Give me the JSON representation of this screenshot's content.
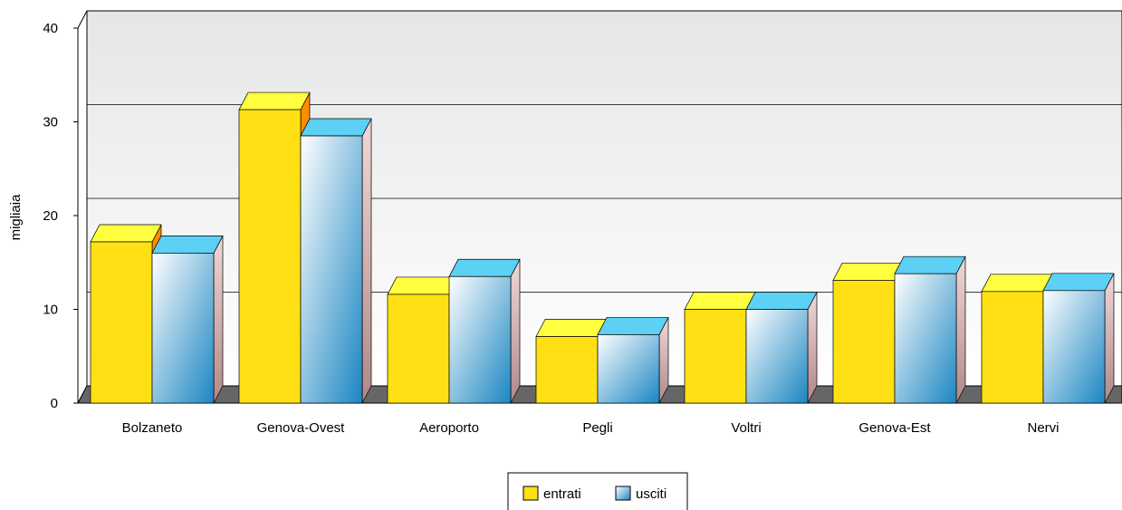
{
  "chart_data": {
    "type": "bar3d",
    "y_label": "migliaia",
    "categories": [
      "Bolzaneto",
      "Genova-Ovest",
      "Aeroporto",
      "Pegli",
      "Voltri",
      "Genova-Est",
      "Nervi"
    ],
    "series": [
      {
        "name": "entrati",
        "color": "#ffe014",
        "values": [
          17.2,
          31.3,
          11.6,
          7.1,
          10.0,
          13.1,
          11.9
        ]
      },
      {
        "name": "usciti",
        "color": "#3a9ed4",
        "values": [
          16.0,
          28.5,
          13.5,
          7.3,
          10.0,
          13.8,
          12.0
        ]
      }
    ],
    "ylim": [
      0,
      40
    ],
    "yticks": [
      0,
      10,
      20,
      30,
      40
    ],
    "grid": true
  }
}
